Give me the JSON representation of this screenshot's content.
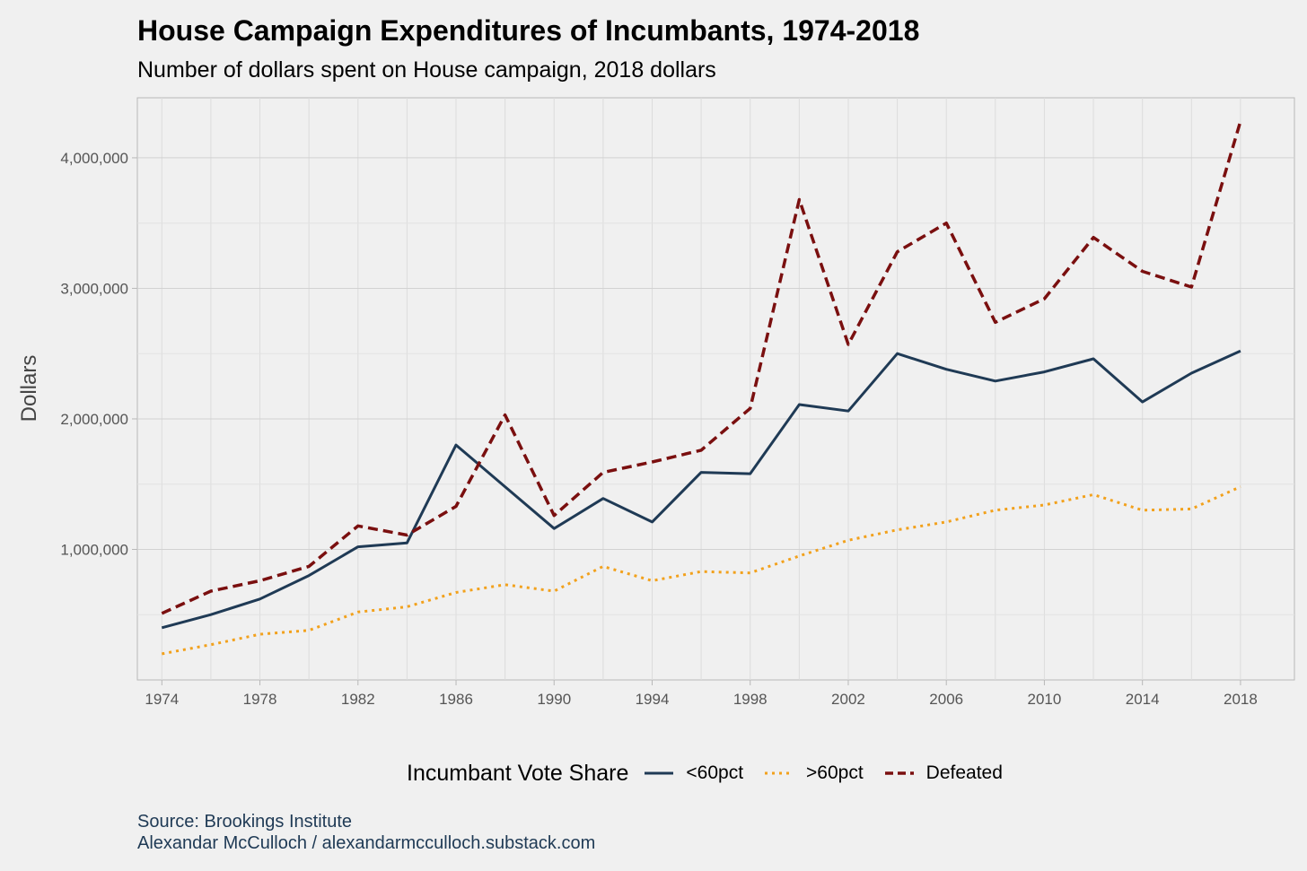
{
  "chart_data": {
    "type": "line",
    "title": "House Campaign Expenditures of Incumbants, 1974-2018",
    "subtitle": "Number of dollars spent on House campaign, 2018 dollars",
    "xlabel": "",
    "ylabel": "Dollars",
    "x": [
      1974,
      1976,
      1978,
      1980,
      1982,
      1984,
      1986,
      1988,
      1990,
      1992,
      1994,
      1996,
      1998,
      2000,
      2002,
      2004,
      2006,
      2008,
      2010,
      2012,
      2014,
      2016,
      2018
    ],
    "xticks": [
      "1974",
      "1978",
      "1982",
      "1986",
      "1990",
      "1994",
      "1998",
      "2002",
      "2006",
      "2010",
      "2014",
      "2018"
    ],
    "yticks": [
      "1,000,000",
      "2,000,000",
      "3,000,000",
      "4,000,000"
    ],
    "ytick_values": [
      1000000,
      2000000,
      3000000,
      4000000
    ],
    "xlim": [
      1973,
      2020.2
    ],
    "ylim": [
      0,
      4460000
    ],
    "grid": true,
    "legend_title": "Incumbant Vote Share",
    "legend_position": "bottom",
    "series": [
      {
        "name": "<60pct",
        "color": "#1f3a55",
        "dash": "solid",
        "values": [
          400000,
          500000,
          620000,
          800000,
          1020000,
          1050000,
          1800000,
          1480000,
          1160000,
          1390000,
          1210000,
          1590000,
          1580000,
          2110000,
          2060000,
          2500000,
          2380000,
          2290000,
          2360000,
          2460000,
          2130000,
          2350000,
          2520000
        ]
      },
      {
        "name": ">60pct",
        "color": "#f2a11c",
        "dash": "dotted",
        "values": [
          200000,
          270000,
          350000,
          380000,
          520000,
          560000,
          670000,
          730000,
          680000,
          870000,
          760000,
          830000,
          820000,
          950000,
          1070000,
          1150000,
          1210000,
          1300000,
          1340000,
          1420000,
          1300000,
          1310000,
          1480000
        ]
      },
      {
        "name": "Defeated",
        "color": "#7a0f0f",
        "dash": "dashed",
        "values": [
          510000,
          680000,
          760000,
          870000,
          1180000,
          1110000,
          1330000,
          2030000,
          1260000,
          1590000,
          1670000,
          1760000,
          2080000,
          3680000,
          2570000,
          3280000,
          3500000,
          2740000,
          2920000,
          3390000,
          3130000,
          3010000,
          4280000
        ]
      }
    ]
  },
  "caption": {
    "source": "Source: Brookings Institute",
    "author": "Alexandar McCulloch / alexandarmcculloch.substack.com"
  }
}
